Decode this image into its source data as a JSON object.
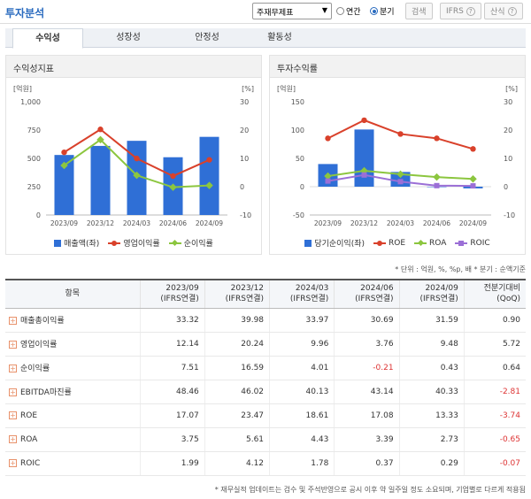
{
  "header": {
    "title": "투자분석",
    "select_value": "주재무제표",
    "radio_annual": "연간",
    "radio_quarter": "분기",
    "search_button": "검색",
    "ifrs_button": "IFRS",
    "formula_button": "산식"
  },
  "tabs": [
    "수익성",
    "성장성",
    "안정성",
    "활동성"
  ],
  "chart_left": {
    "title": "수익성지표",
    "left_unit": "[억원]",
    "right_unit": "[%]",
    "legend": [
      "매출액(좌)",
      "영업이익률",
      "순이익률"
    ]
  },
  "chart_right": {
    "title": "투자수익률",
    "left_unit": "[억원]",
    "right_unit": "[%]",
    "legend": [
      "당기순이익(좌)",
      "ROE",
      "ROA",
      "ROIC"
    ]
  },
  "chart_data": [
    {
      "type": "bar",
      "title": "수익성지표",
      "categories": [
        "2023/09",
        "2023/12",
        "2024/03",
        "2024/06",
        "2024/09"
      ],
      "left_axis": {
        "ylim": [
          0,
          1000
        ],
        "ticks": [
          "0",
          "250",
          "500",
          "750",
          "1,000"
        ]
      },
      "right_axis": {
        "ylim": [
          -10,
          30
        ],
        "ticks": [
          "-10",
          "0",
          "10",
          "20",
          "30"
        ]
      },
      "series": [
        {
          "name": "매출액(좌)",
          "type": "bar",
          "axis": "left",
          "color": "#2f6fd6",
          "values": [
            530,
            610,
            655,
            510,
            690
          ]
        },
        {
          "name": "영업이익률",
          "type": "line",
          "axis": "right",
          "color": "#d9412b",
          "values": [
            12.14,
            20.24,
            9.96,
            3.76,
            9.48
          ]
        },
        {
          "name": "순이익률",
          "type": "line",
          "axis": "right",
          "color": "#8cc63f",
          "values": [
            7.51,
            16.59,
            4.01,
            -0.21,
            0.43
          ]
        }
      ]
    },
    {
      "type": "bar",
      "title": "투자수익률",
      "categories": [
        "2023/09",
        "2023/12",
        "2024/03",
        "2024/06",
        "2024/09"
      ],
      "left_axis": {
        "ylim": [
          -50,
          150
        ],
        "ticks": [
          "-50",
          "0",
          "50",
          "100",
          "150"
        ]
      },
      "right_axis": {
        "ylim": [
          -10,
          30
        ],
        "ticks": [
          "-10",
          "0",
          "10",
          "20",
          "30"
        ]
      },
      "series": [
        {
          "name": "당기순이익(좌)",
          "type": "bar",
          "axis": "left",
          "color": "#2f6fd6",
          "values": [
            40,
            101,
            26,
            0,
            -3
          ]
        },
        {
          "name": "ROE",
          "type": "line",
          "axis": "right",
          "color": "#d9412b",
          "values": [
            17.07,
            23.47,
            18.61,
            17.08,
            13.33
          ]
        },
        {
          "name": "ROA",
          "type": "line",
          "axis": "right",
          "color": "#8cc63f",
          "values": [
            3.75,
            5.61,
            4.43,
            3.39,
            2.73
          ]
        },
        {
          "name": "ROIC",
          "type": "line",
          "axis": "right",
          "color": "#9b6fd6",
          "values": [
            1.99,
            4.12,
            1.78,
            0.37,
            0.29
          ]
        }
      ]
    }
  ],
  "unit_note": "* 단위 : 억원, %, %p, 배      * 분기 : 순액기준",
  "table": {
    "headers": [
      [
        "항목",
        ""
      ],
      [
        "2023/09",
        "(IFRS연결)"
      ],
      [
        "2023/12",
        "(IFRS연결)"
      ],
      [
        "2024/03",
        "(IFRS연결)"
      ],
      [
        "2024/06",
        "(IFRS연결)"
      ],
      [
        "2024/09",
        "(IFRS연결)"
      ],
      [
        "전분기대비",
        "(QoQ)"
      ]
    ],
    "rows": [
      {
        "label": "매출총이익률",
        "values": [
          "33.32",
          "39.98",
          "33.97",
          "30.69",
          "31.59",
          "0.90"
        ]
      },
      {
        "label": "영업이익률",
        "values": [
          "12.14",
          "20.24",
          "9.96",
          "3.76",
          "9.48",
          "5.72"
        ]
      },
      {
        "label": "순이익률",
        "values": [
          "7.51",
          "16.59",
          "4.01",
          "-0.21",
          "0.43",
          "0.64"
        ]
      },
      {
        "label": "EBITDA마진률",
        "values": [
          "48.46",
          "46.02",
          "40.13",
          "43.14",
          "40.33",
          "-2.81"
        ]
      },
      {
        "label": "ROE",
        "values": [
          "17.07",
          "23.47",
          "18.61",
          "17.08",
          "13.33",
          "-3.74"
        ]
      },
      {
        "label": "ROA",
        "values": [
          "3.75",
          "5.61",
          "4.43",
          "3.39",
          "2.73",
          "-0.65"
        ]
      },
      {
        "label": "ROIC",
        "values": [
          "1.99",
          "4.12",
          "1.78",
          "0.37",
          "0.29",
          "-0.07"
        ]
      }
    ]
  },
  "footer_note": "* 재무실적 업데이트는 검수 및 주석반영으로 공시 이후 약 일주일 정도 소요되며, 기업별로 다르게 적용됨"
}
